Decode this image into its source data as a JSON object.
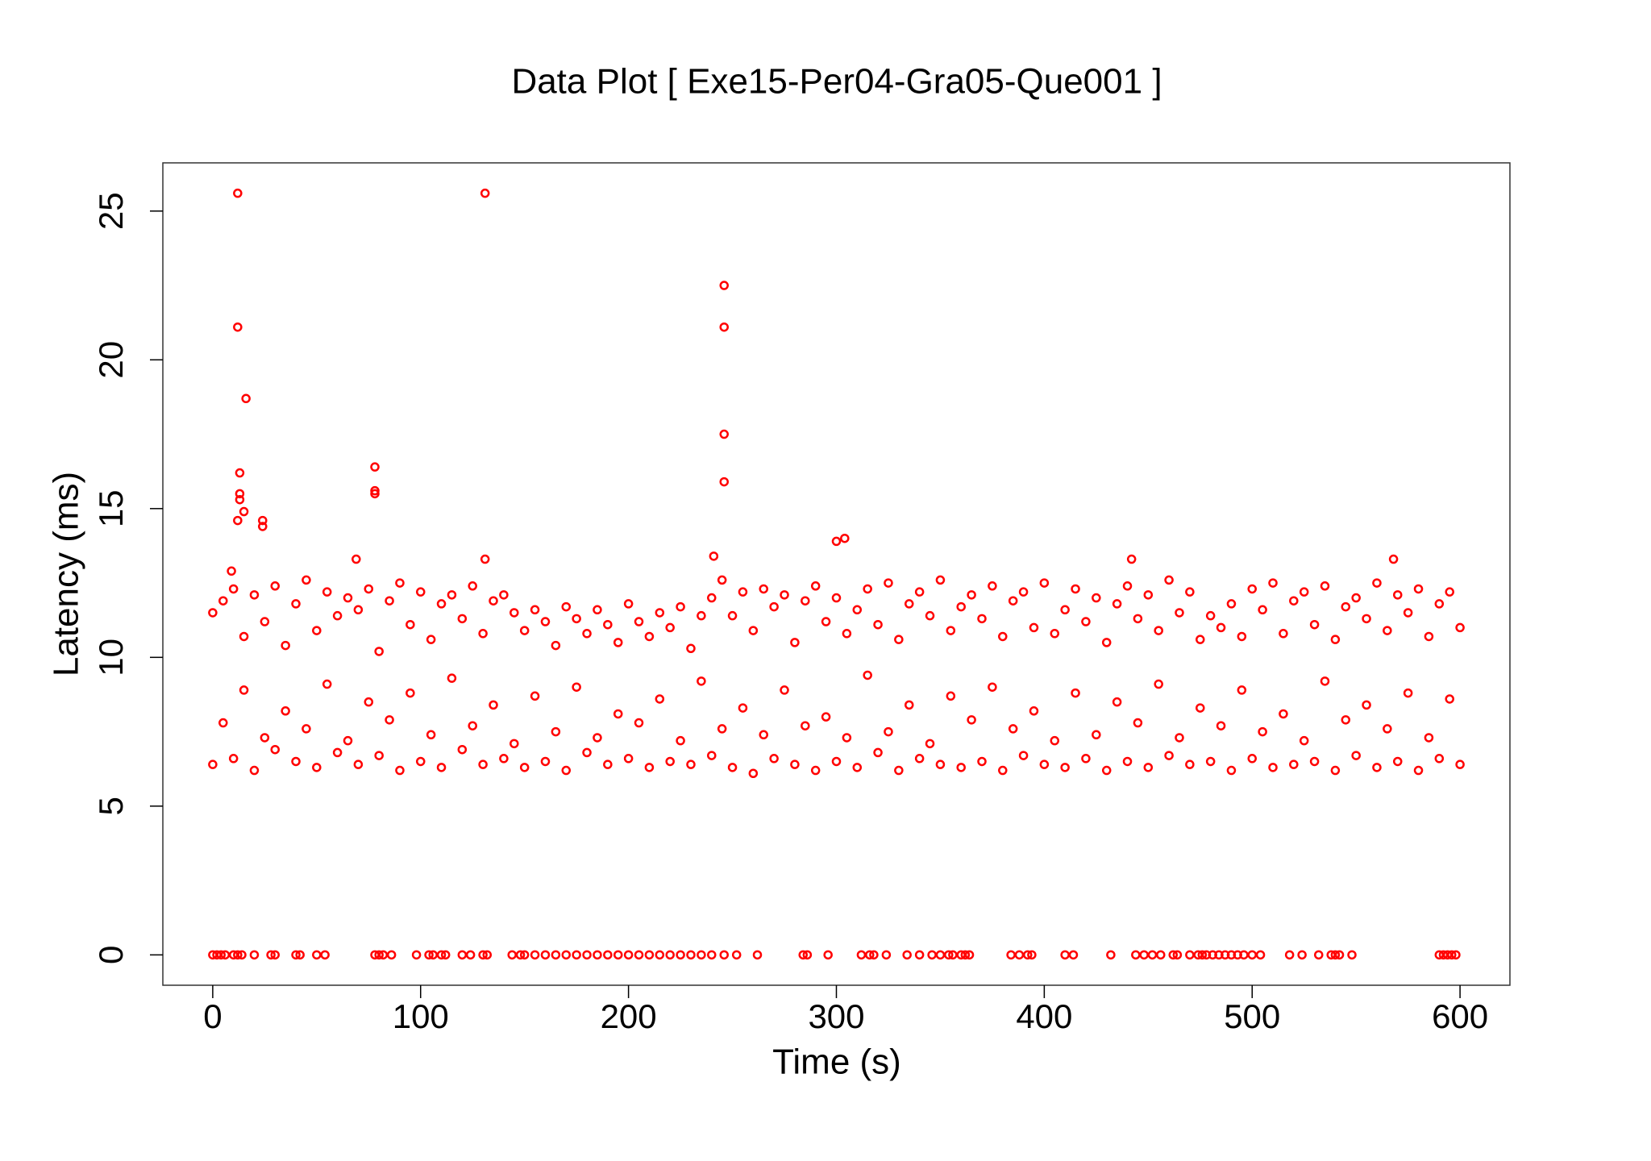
{
  "chart_data": {
    "type": "scatter",
    "title": "Data Plot [ Exe15-Per04-Gra05-Que001 ]",
    "x_label": "Time (s)",
    "y_label": "Latency (ms)",
    "color": "#ff0000",
    "x": [
      0,
      0,
      5,
      5,
      10,
      10,
      15,
      15,
      20,
      20,
      25,
      25,
      30,
      30,
      35,
      35,
      40,
      40,
      45,
      45,
      50,
      50,
      55,
      55,
      60,
      60,
      65,
      65,
      70,
      70,
      75,
      75,
      80,
      80,
      85,
      85,
      90,
      90,
      95,
      95,
      100,
      100,
      105,
      105,
      110,
      110,
      115,
      115,
      120,
      120,
      125,
      125,
      130,
      130,
      135,
      135,
      140,
      140,
      145,
      145,
      150,
      150,
      155,
      155,
      160,
      160,
      165,
      165,
      170,
      170,
      175,
      175,
      180,
      180,
      185,
      185,
      190,
      190,
      195,
      195,
      200,
      200,
      205,
      205,
      210,
      210,
      215,
      215,
      220,
      220,
      225,
      225,
      230,
      230,
      235,
      235,
      240,
      240,
      245,
      245,
      250,
      250,
      255,
      255,
      260,
      260,
      265,
      265,
      270,
      270,
      275,
      275,
      280,
      280,
      285,
      285,
      290,
      290,
      295,
      295,
      300,
      300,
      305,
      305,
      310,
      310,
      315,
      315,
      320,
      320,
      325,
      325,
      330,
      330,
      335,
      335,
      340,
      340,
      345,
      345,
      350,
      350,
      355,
      355,
      360,
      360,
      365,
      365,
      370,
      370,
      375,
      375,
      380,
      380,
      385,
      385,
      390,
      390,
      395,
      395,
      400,
      400,
      405,
      405,
      410,
      410,
      415,
      415,
      420,
      420,
      425,
      425,
      430,
      430,
      435,
      435,
      440,
      440,
      445,
      445,
      450,
      450,
      455,
      455,
      460,
      460,
      465,
      465,
      470,
      470,
      475,
      475,
      480,
      480,
      485,
      485,
      490,
      490,
      495,
      495,
      500,
      500,
      505,
      505,
      510,
      510,
      515,
      515,
      520,
      520,
      525,
      525,
      530,
      530,
      535,
      535,
      540,
      540,
      545,
      545,
      550,
      550,
      555,
      555,
      560,
      560,
      565,
      565,
      570,
      570,
      575,
      575,
      580,
      580,
      585,
      585,
      590,
      590,
      595,
      595,
      600,
      600,
      12,
      131,
      246,
      12,
      246,
      16,
      78,
      246,
      246,
      13,
      13,
      13,
      78,
      78,
      12,
      15,
      24,
      24,
      300,
      304,
      131,
      69,
      241,
      568,
      442,
      9,
      0,
      2,
      4,
      6,
      10,
      12,
      14,
      20,
      28,
      30,
      40,
      42,
      50,
      54,
      78,
      80,
      82,
      86,
      98,
      104,
      106,
      110,
      112,
      120,
      124,
      130,
      132,
      144,
      148,
      150,
      155,
      160,
      165,
      170,
      175,
      180,
      185,
      190,
      195,
      200,
      205,
      210,
      215,
      220,
      225,
      230,
      235,
      240,
      246,
      252,
      262,
      284,
      286,
      296,
      312,
      316,
      318,
      324,
      334,
      340,
      346,
      350,
      354,
      356,
      360,
      362,
      364,
      384,
      388,
      392,
      394,
      410,
      414,
      432,
      444,
      448,
      452,
      456,
      462,
      464,
      470,
      474,
      476,
      478,
      481,
      484,
      487,
      490,
      493,
      496,
      500,
      504,
      518,
      524,
      532,
      538,
      540,
      542,
      548,
      590,
      592,
      594,
      596,
      598
    ],
    "values": [
      6.4,
      11.5,
      7.8,
      11.9,
      6.6,
      12.3,
      8.9,
      10.7,
      6.2,
      12.1,
      7.3,
      11.2,
      6.9,
      12.4,
      8.2,
      10.4,
      6.5,
      11.8,
      7.6,
      12.6,
      6.3,
      10.9,
      9.1,
      12.2,
      6.8,
      11.4,
      7.2,
      12.0,
      6.4,
      11.6,
      8.5,
      12.3,
      6.7,
      10.2,
      7.9,
      11.9,
      6.2,
      12.5,
      8.8,
      11.1,
      6.5,
      12.2,
      7.4,
      10.6,
      6.3,
      11.8,
      9.3,
      12.1,
      6.9,
      11.3,
      7.7,
      12.4,
      6.4,
      10.8,
      8.4,
      11.9,
      6.6,
      12.1,
      7.1,
      11.5,
      6.3,
      10.9,
      8.7,
      11.6,
      6.5,
      11.2,
      7.5,
      10.4,
      6.2,
      11.7,
      9.0,
      11.3,
      6.8,
      10.8,
      7.3,
      11.6,
      6.4,
      11.1,
      8.1,
      10.5,
      6.6,
      11.8,
      7.8,
      11.2,
      6.3,
      10.7,
      8.6,
      11.5,
      6.5,
      11.0,
      7.2,
      11.7,
      6.4,
      10.3,
      9.2,
      11.4,
      6.7,
      12.0,
      7.6,
      12.6,
      6.3,
      11.4,
      8.3,
      12.2,
      6.1,
      10.9,
      7.4,
      12.3,
      6.6,
      11.7,
      8.9,
      12.1,
      6.4,
      10.5,
      7.7,
      11.9,
      6.2,
      12.4,
      8.0,
      11.2,
      6.5,
      12.0,
      7.3,
      10.8,
      6.3,
      11.6,
      9.4,
      12.3,
      6.8,
      11.1,
      7.5,
      12.5,
      6.2,
      10.6,
      8.4,
      11.8,
      6.6,
      12.2,
      7.1,
      11.4,
      6.4,
      12.6,
      8.7,
      10.9,
      6.3,
      11.7,
      7.9,
      12.1,
      6.5,
      11.3,
      9.0,
      12.4,
      6.2,
      10.7,
      7.6,
      11.9,
      6.7,
      12.2,
      8.2,
      11.0,
      6.4,
      12.5,
      7.2,
      10.8,
      6.3,
      11.6,
      8.8,
      12.3,
      6.6,
      11.2,
      7.4,
      12.0,
      6.2,
      10.5,
      8.5,
      11.8,
      6.5,
      12.4,
      7.8,
      11.3,
      6.3,
      12.1,
      9.1,
      10.9,
      6.7,
      12.6,
      7.3,
      11.5,
      6.4,
      12.2,
      8.3,
      10.6,
      6.5,
      11.4,
      7.7,
      11.0,
      6.2,
      11.8,
      8.9,
      10.7,
      6.6,
      12.3,
      7.5,
      11.6,
      6.3,
      12.5,
      8.1,
      10.8,
      6.4,
      11.9,
      7.2,
      12.2,
      6.5,
      11.1,
      9.2,
      12.4,
      6.2,
      10.6,
      7.9,
      11.7,
      6.7,
      12.0,
      8.4,
      11.3,
      6.3,
      12.5,
      7.6,
      10.9,
      6.5,
      12.1,
      8.8,
      11.5,
      6.2,
      12.3,
      7.3,
      10.7,
      6.6,
      11.8,
      8.6,
      12.2,
      6.4,
      11.0,
      25.6,
      25.6,
      22.5,
      21.1,
      21.1,
      18.7,
      16.4,
      17.5,
      15.9,
      16.2,
      15.5,
      15.3,
      15.6,
      15.5,
      14.6,
      14.9,
      14.6,
      14.4,
      13.9,
      14.0,
      13.3,
      13.3,
      13.4,
      13.3,
      13.3,
      12.9,
      0,
      0,
      0,
      0,
      0,
      0,
      0,
      0,
      0,
      0,
      0,
      0,
      0,
      0,
      0,
      0,
      0,
      0,
      0,
      0,
      0,
      0,
      0,
      0,
      0,
      0,
      0,
      0,
      0,
      0,
      0,
      0,
      0,
      0,
      0,
      0,
      0,
      0,
      0,
      0,
      0,
      0,
      0,
      0,
      0,
      0,
      0,
      0,
      0,
      0,
      0,
      0,
      0,
      0,
      0,
      0,
      0,
      0,
      0,
      0,
      0,
      0,
      0,
      0,
      0,
      0,
      0,
      0,
      0,
      0,
      0,
      0,
      0,
      0,
      0,
      0,
      0,
      0,
      0,
      0,
      0,
      0,
      0,
      0,
      0,
      0,
      0,
      0,
      0,
      0,
      0,
      0,
      0,
      0,
      0,
      0,
      0,
      0,
      0,
      0,
      0,
      0,
      0,
      0
    ],
    "xlim": [
      -24,
      624
    ],
    "ylim": [
      -1.02,
      26.62
    ],
    "xticks": [
      0,
      100,
      200,
      300,
      400,
      500,
      600
    ],
    "yticks": [
      0,
      5,
      10,
      15,
      20,
      25
    ]
  }
}
